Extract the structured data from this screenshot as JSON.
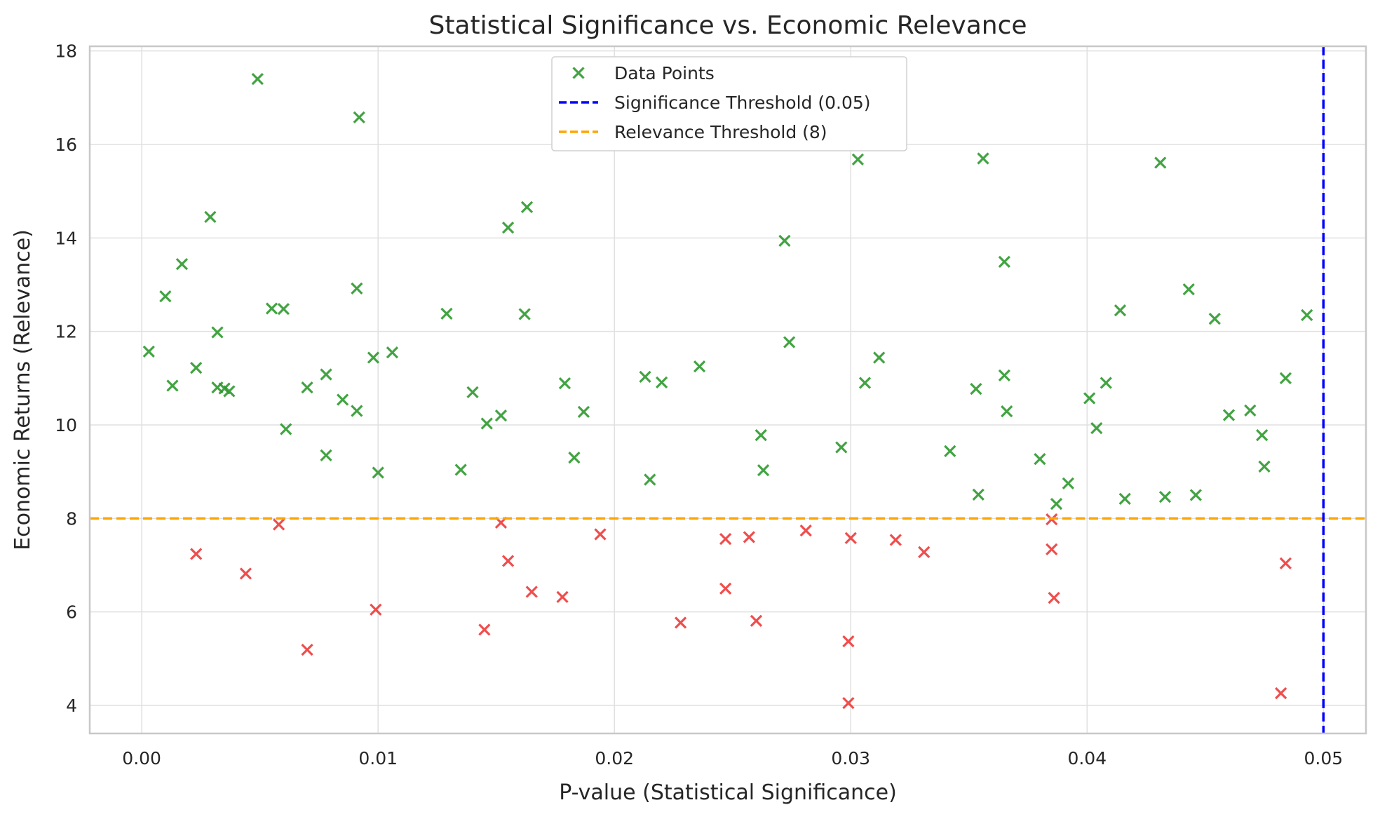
{
  "chart_data": {
    "type": "scatter",
    "title": "Statistical Significance vs. Economic Relevance",
    "xlabel": "P-value (Statistical Significance)",
    "ylabel": "Economic Returns (Relevance)",
    "xlim": [
      -0.0022,
      0.0518
    ],
    "ylim": [
      3.4,
      18.1
    ],
    "xticks": [
      0.0,
      0.01,
      0.02,
      0.03,
      0.04,
      0.05
    ],
    "xtick_labels": [
      "0.00",
      "0.01",
      "0.02",
      "0.03",
      "0.04",
      "0.05"
    ],
    "yticks": [
      4,
      6,
      8,
      10,
      12,
      14,
      16,
      18
    ],
    "ytick_labels": [
      "4",
      "6",
      "8",
      "10",
      "12",
      "14",
      "16",
      "18"
    ],
    "grid": true,
    "legend_position": "top-center",
    "colors": {
      "relevant": "#2e9a2e",
      "not_relevant": "#ef3a3a",
      "significance_line": "#0000ff",
      "relevance_line": "#ffa500",
      "grid": "#e0e0e0",
      "spine": "#c8c8c8"
    },
    "marker": "x",
    "thresholds": {
      "significance": {
        "value": 0.05,
        "label": "Significance Threshold (0.05)"
      },
      "relevance": {
        "value": 8,
        "label": "Relevance Threshold (8)"
      }
    },
    "series": [
      {
        "name": "Data Points",
        "points": [
          [
            0.0003,
            11.57
          ],
          [
            0.001,
            12.75
          ],
          [
            0.0013,
            10.84
          ],
          [
            0.0017,
            13.44
          ],
          [
            0.0023,
            11.22
          ],
          [
            0.0029,
            14.45
          ],
          [
            0.0032,
            11.98
          ],
          [
            0.0032,
            10.8
          ],
          [
            0.0035,
            10.78
          ],
          [
            0.0037,
            10.72
          ],
          [
            0.0049,
            17.4
          ],
          [
            0.0055,
            12.49
          ],
          [
            0.006,
            12.48
          ],
          [
            0.0061,
            9.91
          ],
          [
            0.007,
            10.8
          ],
          [
            0.0078,
            9.35
          ],
          [
            0.0078,
            11.08
          ],
          [
            0.0085,
            10.54
          ],
          [
            0.0091,
            10.3
          ],
          [
            0.0091,
            12.92
          ],
          [
            0.0092,
            16.58
          ],
          [
            0.0098,
            11.44
          ],
          [
            0.01,
            8.98
          ],
          [
            0.0106,
            11.55
          ],
          [
            0.0129,
            12.38
          ],
          [
            0.0135,
            9.04
          ],
          [
            0.014,
            10.7
          ],
          [
            0.0146,
            10.03
          ],
          [
            0.0152,
            10.2
          ],
          [
            0.0155,
            14.22
          ],
          [
            0.0162,
            12.37
          ],
          [
            0.0163,
            14.66
          ],
          [
            0.0179,
            10.89
          ],
          [
            0.0183,
            9.3
          ],
          [
            0.0187,
            10.28
          ],
          [
            0.0213,
            11.03
          ],
          [
            0.0215,
            8.83
          ],
          [
            0.022,
            10.91
          ],
          [
            0.0236,
            11.25
          ],
          [
            0.0262,
            9.78
          ],
          [
            0.0263,
            9.03
          ],
          [
            0.0272,
            13.94
          ],
          [
            0.0274,
            11.77
          ],
          [
            0.0296,
            9.52
          ],
          [
            0.0303,
            15.68
          ],
          [
            0.0306,
            10.9
          ],
          [
            0.0312,
            11.44
          ],
          [
            0.0342,
            9.44
          ],
          [
            0.0353,
            10.77
          ],
          [
            0.0354,
            8.51
          ],
          [
            0.0356,
            15.7
          ],
          [
            0.0365,
            11.06
          ],
          [
            0.0365,
            13.49
          ],
          [
            0.0366,
            10.29
          ],
          [
            0.038,
            9.27
          ],
          [
            0.0387,
            8.31
          ],
          [
            0.0392,
            8.75
          ],
          [
            0.0401,
            10.57
          ],
          [
            0.0404,
            9.93
          ],
          [
            0.0408,
            10.9
          ],
          [
            0.0414,
            12.45
          ],
          [
            0.0416,
            8.42
          ],
          [
            0.0431,
            15.61
          ],
          [
            0.0433,
            8.46
          ],
          [
            0.0443,
            12.9
          ],
          [
            0.0446,
            8.5
          ],
          [
            0.0454,
            12.27
          ],
          [
            0.046,
            10.21
          ],
          [
            0.0469,
            10.31
          ],
          [
            0.0474,
            9.78
          ],
          [
            0.0475,
            9.11
          ],
          [
            0.0484,
            11.0
          ],
          [
            0.0493,
            12.35
          ],
          [
            0.0023,
            7.24
          ],
          [
            0.0044,
            6.82
          ],
          [
            0.0058,
            7.87
          ],
          [
            0.007,
            5.19
          ],
          [
            0.0099,
            6.05
          ],
          [
            0.0145,
            5.62
          ],
          [
            0.0152,
            7.91
          ],
          [
            0.0155,
            7.09
          ],
          [
            0.0165,
            6.43
          ],
          [
            0.0178,
            6.32
          ],
          [
            0.0194,
            7.66
          ],
          [
            0.0228,
            5.77
          ],
          [
            0.0247,
            7.56
          ],
          [
            0.0247,
            6.5
          ],
          [
            0.0257,
            7.6
          ],
          [
            0.026,
            5.81
          ],
          [
            0.0281,
            7.74
          ],
          [
            0.0299,
            5.37
          ],
          [
            0.0299,
            4.05
          ],
          [
            0.03,
            7.58
          ],
          [
            0.0319,
            7.54
          ],
          [
            0.0331,
            7.28
          ],
          [
            0.0385,
            7.98
          ],
          [
            0.0385,
            7.34
          ],
          [
            0.0386,
            6.3
          ],
          [
            0.0482,
            4.26
          ],
          [
            0.0484,
            7.04
          ]
        ]
      }
    ]
  }
}
